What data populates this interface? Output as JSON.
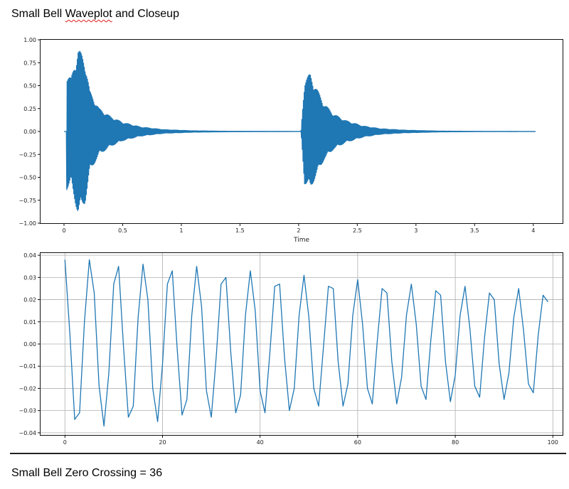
{
  "document": {
    "title_prefix": "Small Bell ",
    "title_misspelled": "Waveplot",
    "title_suffix": " and Closeup",
    "footer": "Small Bell Zero Crossing = 36"
  },
  "chart_data": [
    {
      "type": "line",
      "title": "",
      "xlabel": "Time",
      "ylabel": "",
      "xlim": [
        -0.2,
        4.25
      ],
      "ylim": [
        -1.0,
        1.0
      ],
      "xticks": [
        0,
        0.5,
        1,
        1.5,
        2,
        2.5,
        3,
        3.5,
        4
      ],
      "xtick_labels": [
        "0",
        "0.5",
        "1",
        "1.5",
        "2",
        "2.5",
        "3",
        "3.5",
        "4"
      ],
      "yticks": [
        -1.0,
        -0.75,
        -0.5,
        -0.25,
        0.0,
        0.25,
        0.5,
        0.75,
        1.0
      ],
      "ytick_labels": [
        "−1.00",
        "−0.75",
        "−0.50",
        "−0.25",
        "0.00",
        "0.25",
        "0.50",
        "0.75",
        "1.00"
      ],
      "grid": false,
      "color": "#1f77b4",
      "envelope_peaks": [
        {
          "x": 0.02,
          "y": 0.64
        },
        {
          "x": 0.06,
          "y": 0.58
        },
        {
          "x": 0.12,
          "y": 0.91
        },
        {
          "x": 0.18,
          "y": 0.78
        },
        {
          "x": 0.22,
          "y": 0.44
        },
        {
          "x": 0.3,
          "y": 0.25
        },
        {
          "x": 0.4,
          "y": 0.16
        },
        {
          "x": 0.5,
          "y": 0.1
        },
        {
          "x": 0.65,
          "y": 0.05
        },
        {
          "x": 0.85,
          "y": 0.02
        },
        {
          "x": 1.1,
          "y": 0.008
        },
        {
          "x": 1.4,
          "y": 0.003
        },
        {
          "x": 1.8,
          "y": 0.001
        },
        {
          "x": 2.02,
          "y": 0.0
        },
        {
          "x": 2.05,
          "y": 0.57
        },
        {
          "x": 2.1,
          "y": 0.63
        },
        {
          "x": 2.15,
          "y": 0.48
        },
        {
          "x": 2.22,
          "y": 0.3
        },
        {
          "x": 2.3,
          "y": 0.19
        },
        {
          "x": 2.4,
          "y": 0.12
        },
        {
          "x": 2.55,
          "y": 0.06
        },
        {
          "x": 2.7,
          "y": 0.03
        },
        {
          "x": 2.9,
          "y": 0.015
        },
        {
          "x": 3.2,
          "y": 0.005
        },
        {
          "x": 3.6,
          "y": 0.001
        },
        {
          "x": 4.02,
          "y": 0.0
        }
      ]
    },
    {
      "type": "line",
      "title": "",
      "xlabel": "",
      "ylabel": "",
      "xlim": [
        -5,
        102
      ],
      "ylim": [
        -0.041,
        0.041
      ],
      "xticks": [
        0,
        20,
        40,
        60,
        80,
        100
      ],
      "xtick_labels": [
        "0",
        "20",
        "40",
        "60",
        "80",
        "100"
      ],
      "yticks": [
        -0.04,
        -0.03,
        -0.02,
        -0.01,
        0.0,
        0.01,
        0.02,
        0.03,
        0.04
      ],
      "ytick_labels": [
        "−0.04",
        "−0.03",
        "−0.02",
        "−0.01",
        "0.00",
        "0.01",
        "0.02",
        "0.03",
        "0.04"
      ],
      "grid": true,
      "color": "#1f77b4",
      "x": [
        0,
        1,
        2,
        3,
        4,
        5,
        6,
        7,
        8,
        9,
        10,
        11,
        12,
        13,
        14,
        15,
        16,
        17,
        18,
        19,
        20,
        21,
        22,
        23,
        24,
        25,
        26,
        27,
        28,
        29,
        30,
        31,
        32,
        33,
        34,
        35,
        36,
        37,
        38,
        39,
        40,
        41,
        42,
        43,
        44,
        45,
        46,
        47,
        48,
        49,
        50,
        51,
        52,
        53,
        54,
        55,
        56,
        57,
        58,
        59,
        60,
        61,
        62,
        63,
        64,
        65,
        66,
        67,
        68,
        69,
        70,
        71,
        72,
        73,
        74,
        75,
        76,
        77,
        78,
        79,
        80,
        81,
        82,
        83,
        84,
        85,
        86,
        87,
        88,
        89,
        90,
        91,
        92,
        93,
        94,
        95,
        96,
        97,
        98,
        99
      ],
      "y": [
        0.038,
        0.005,
        -0.034,
        -0.031,
        0.01,
        0.038,
        0.023,
        -0.019,
        -0.037,
        -0.013,
        0.027,
        0.035,
        -0.001,
        -0.033,
        -0.028,
        0.012,
        0.036,
        0.02,
        -0.02,
        -0.035,
        -0.009,
        0.027,
        0.033,
        -0.002,
        -0.032,
        -0.025,
        0.013,
        0.035,
        0.017,
        -0.021,
        -0.033,
        -0.006,
        0.027,
        0.03,
        -0.004,
        -0.031,
        -0.023,
        0.013,
        0.033,
        0.015,
        -0.021,
        -0.031,
        -0.004,
        0.026,
        0.027,
        -0.006,
        -0.03,
        -0.02,
        0.013,
        0.031,
        0.012,
        -0.02,
        -0.028,
        -0.001,
        0.026,
        0.025,
        -0.008,
        -0.028,
        -0.018,
        0.013,
        0.029,
        0.009,
        -0.02,
        -0.027,
        0.001,
        0.025,
        0.023,
        -0.008,
        -0.027,
        -0.015,
        0.013,
        0.027,
        0.009,
        -0.019,
        -0.025,
        0.002,
        0.024,
        0.022,
        -0.008,
        -0.026,
        -0.014,
        0.013,
        0.026,
        0.007,
        -0.019,
        -0.024,
        0.003,
        0.023,
        0.02,
        -0.009,
        -0.025,
        -0.013,
        0.012,
        0.025,
        0.006,
        -0.018,
        -0.022,
        0.004,
        0.022,
        0.019
      ]
    }
  ]
}
